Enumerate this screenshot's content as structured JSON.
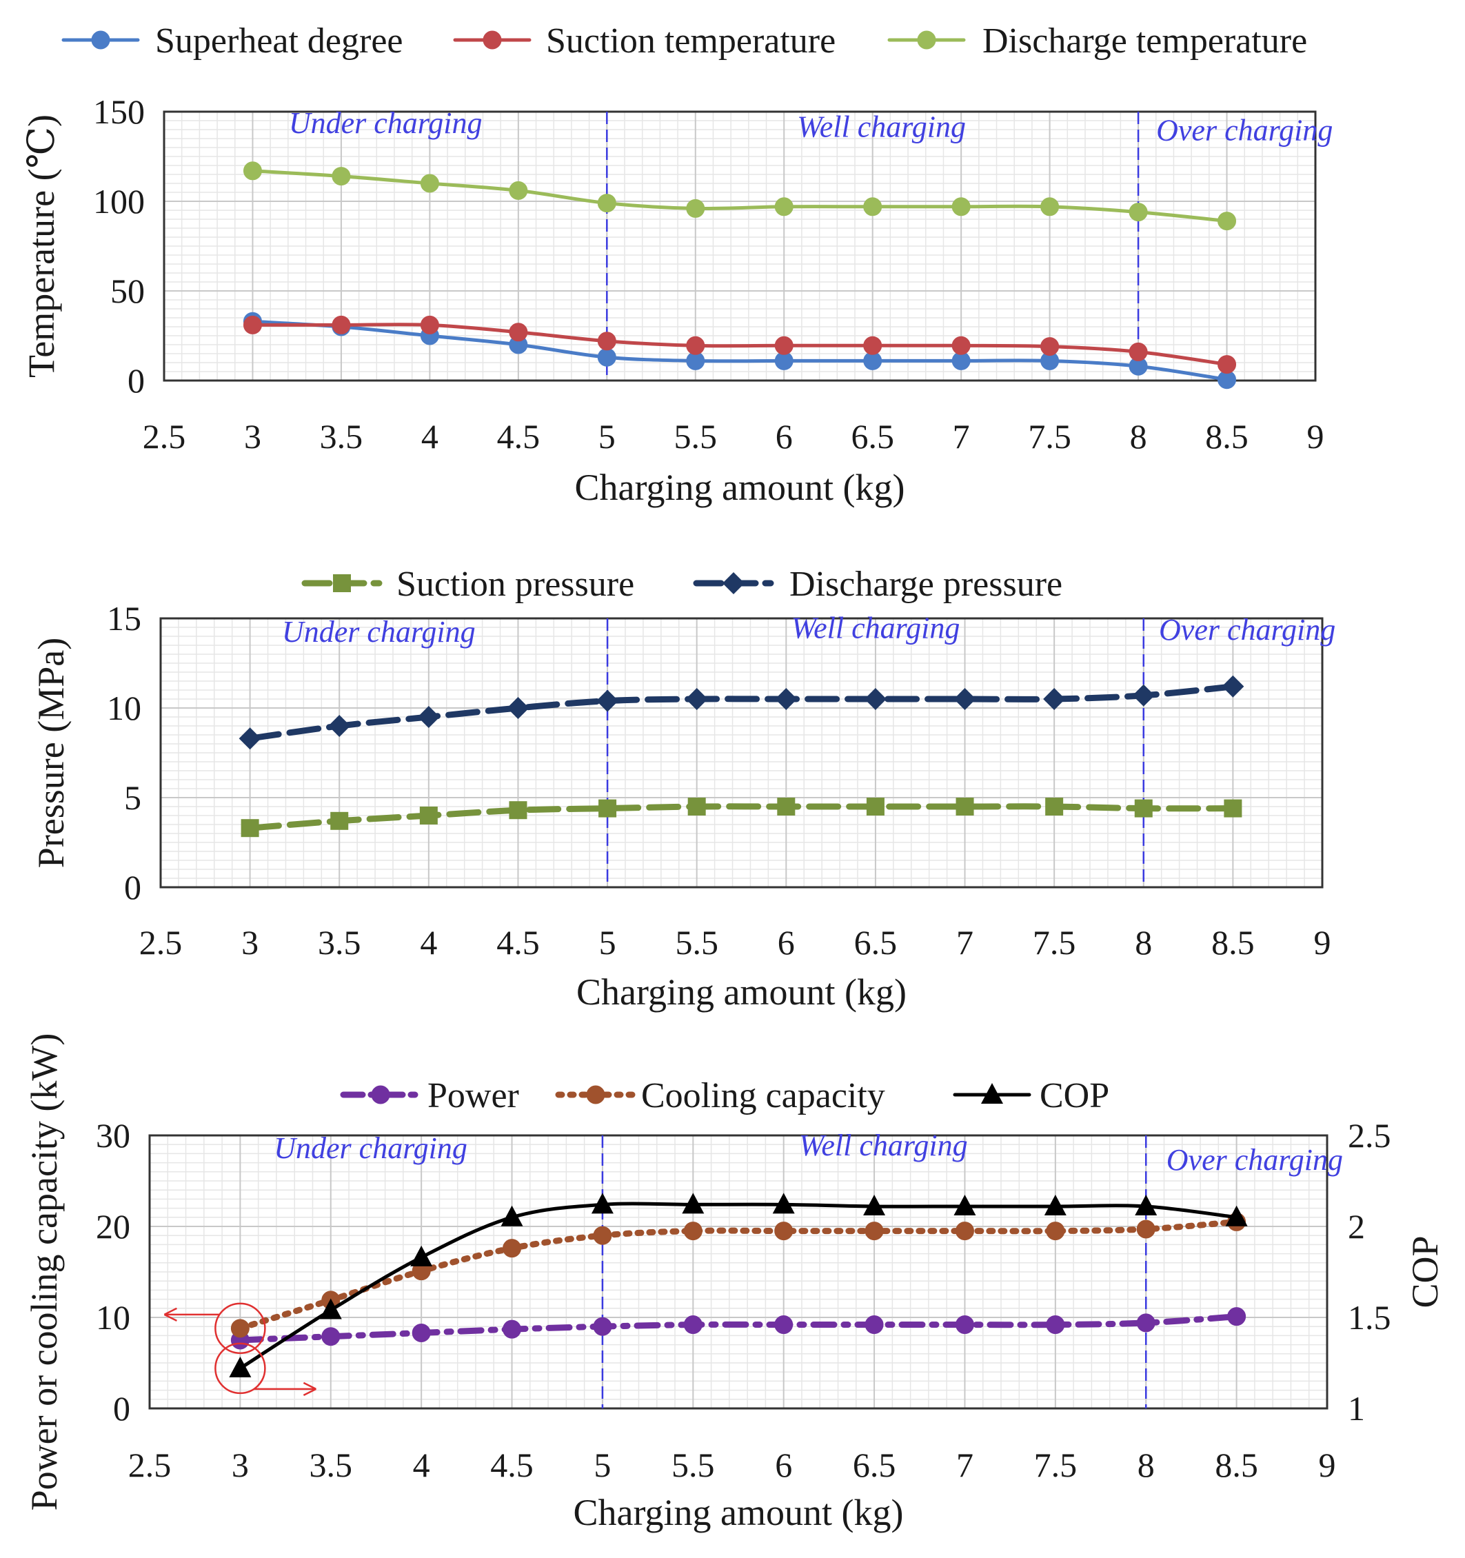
{
  "chart_data": [
    {
      "type": "line",
      "x": [
        3,
        3.5,
        4,
        4.5,
        5,
        5.5,
        6,
        6.5,
        7,
        7.5,
        8,
        8.5
      ],
      "xlim": [
        2.5,
        9
      ],
      "xticks": [
        "2.5",
        "3",
        "3.5",
        "4",
        "4.5",
        "5",
        "5.5",
        "6",
        "6.5",
        "7",
        "7.5",
        "8",
        "8.5",
        "9"
      ],
      "ylim": [
        0,
        150
      ],
      "yticks": [
        "0",
        "50",
        "100",
        "150"
      ],
      "xlabel": "Charging amount (kg)",
      "ylabel": "Temperature (℃)",
      "regions": [
        {
          "label": "Under charging",
          "x": 3.75,
          "y": 138
        },
        {
          "label": "Well charging",
          "x": 6.55,
          "y": 136
        },
        {
          "label": "Over charging",
          "x": 8.6,
          "y": 134
        }
      ],
      "dividers": [
        5,
        8
      ],
      "series": [
        {
          "name": "Superheat degree",
          "color": "#4a7cc7",
          "style": "solid",
          "marker": "circle",
          "values": [
            33,
            30,
            25,
            20,
            13,
            11,
            11,
            11,
            11,
            11,
            8,
            0.5
          ]
        },
        {
          "name": "Suction temperature",
          "color": "#c0474a",
          "style": "solid",
          "marker": "circle",
          "values": [
            31,
            31,
            31,
            27,
            22,
            19.5,
            19.5,
            19.5,
            19.5,
            19,
            16,
            9
          ]
        },
        {
          "name": "Discharge temperature",
          "color": "#9bbb59",
          "style": "solid",
          "marker": "circle",
          "values": [
            117,
            114,
            110,
            106,
            99,
            96,
            97,
            97,
            97,
            97,
            94,
            89
          ]
        }
      ]
    },
    {
      "type": "line",
      "x": [
        3,
        3.5,
        4,
        4.5,
        5,
        5.5,
        6,
        6.5,
        7,
        7.5,
        8,
        8.5
      ],
      "xlim": [
        2.5,
        9
      ],
      "xticks": [
        "2.5",
        "3",
        "3.5",
        "4",
        "4.5",
        "5",
        "5.5",
        "6",
        "6.5",
        "7",
        "7.5",
        "8",
        "8.5",
        "9"
      ],
      "ylim": [
        0,
        15
      ],
      "yticks": [
        "0",
        "5",
        "10",
        "15"
      ],
      "xlabel": "Charging amount (kg)",
      "ylabel": "Pressure (MPa)",
      "regions": [
        {
          "label": "Under charging",
          "x": 3.72,
          "y": 13.7
        },
        {
          "label": "Well charging",
          "x": 6.5,
          "y": 13.9
        },
        {
          "label": "Over charging",
          "x": 8.58,
          "y": 13.8
        }
      ],
      "dividers": [
        5,
        8
      ],
      "series": [
        {
          "name": "Suction pressure",
          "color": "#77933c",
          "style": "dashed",
          "marker": "square",
          "values": [
            3.3,
            3.7,
            4.0,
            4.3,
            4.4,
            4.5,
            4.5,
            4.5,
            4.5,
            4.5,
            4.4,
            4.4
          ]
        },
        {
          "name": "Discharge pressure",
          "color": "#1f3864",
          "style": "dashed",
          "marker": "diamond",
          "values": [
            8.3,
            9.0,
            9.5,
            10.0,
            10.4,
            10.5,
            10.5,
            10.5,
            10.5,
            10.5,
            10.7,
            11.2
          ]
        }
      ]
    },
    {
      "type": "line",
      "x": [
        3,
        3.5,
        4,
        4.5,
        5,
        5.5,
        6,
        6.5,
        7,
        7.5,
        8,
        8.5
      ],
      "xlim": [
        2.5,
        9
      ],
      "xticks": [
        "2.5",
        "3",
        "3.5",
        "4",
        "4.5",
        "5",
        "5.5",
        "6",
        "6.5",
        "7",
        "7.5",
        "8",
        "8.5",
        "9"
      ],
      "ylim": [
        0,
        30
      ],
      "yticks": [
        "0",
        "10",
        "20",
        "30"
      ],
      "y2lim": [
        1,
        2.5
      ],
      "y2ticks": [
        "1",
        "1.5",
        "2",
        "2.5"
      ],
      "xlabel": "Charging amount (kg)",
      "ylabel": "Power or cooling capacity (kW)",
      "y2label": "COP",
      "regions": [
        {
          "label": "Under charging",
          "x": 3.72,
          "y": 27.5
        },
        {
          "label": "Well charging",
          "x": 6.55,
          "y": 27.8
        },
        {
          "label": "Over charging",
          "x": 8.6,
          "y": 26.2
        }
      ],
      "dividers": [
        5,
        8
      ],
      "series": [
        {
          "name": "Power",
          "color": "#7030a0",
          "style": "dashdot",
          "marker": "circle",
          "axis": "left",
          "values": [
            7.5,
            7.9,
            8.3,
            8.7,
            9.0,
            9.2,
            9.2,
            9.2,
            9.2,
            9.2,
            9.4,
            10.1
          ]
        },
        {
          "name": "Cooling capacity",
          "color": "#a0522d",
          "style": "dotted",
          "marker": "circle",
          "axis": "left",
          "values": [
            8.8,
            11.9,
            15.1,
            17.6,
            19.0,
            19.5,
            19.5,
            19.5,
            19.5,
            19.5,
            19.7,
            20.5
          ]
        },
        {
          "name": "COP",
          "color": "#000000",
          "style": "solid",
          "marker": "triangle",
          "axis": "right",
          "values": [
            1.22,
            1.54,
            1.83,
            2.05,
            2.12,
            2.12,
            2.12,
            2.11,
            2.11,
            2.11,
            2.11,
            2.05
          ]
        }
      ]
    }
  ]
}
